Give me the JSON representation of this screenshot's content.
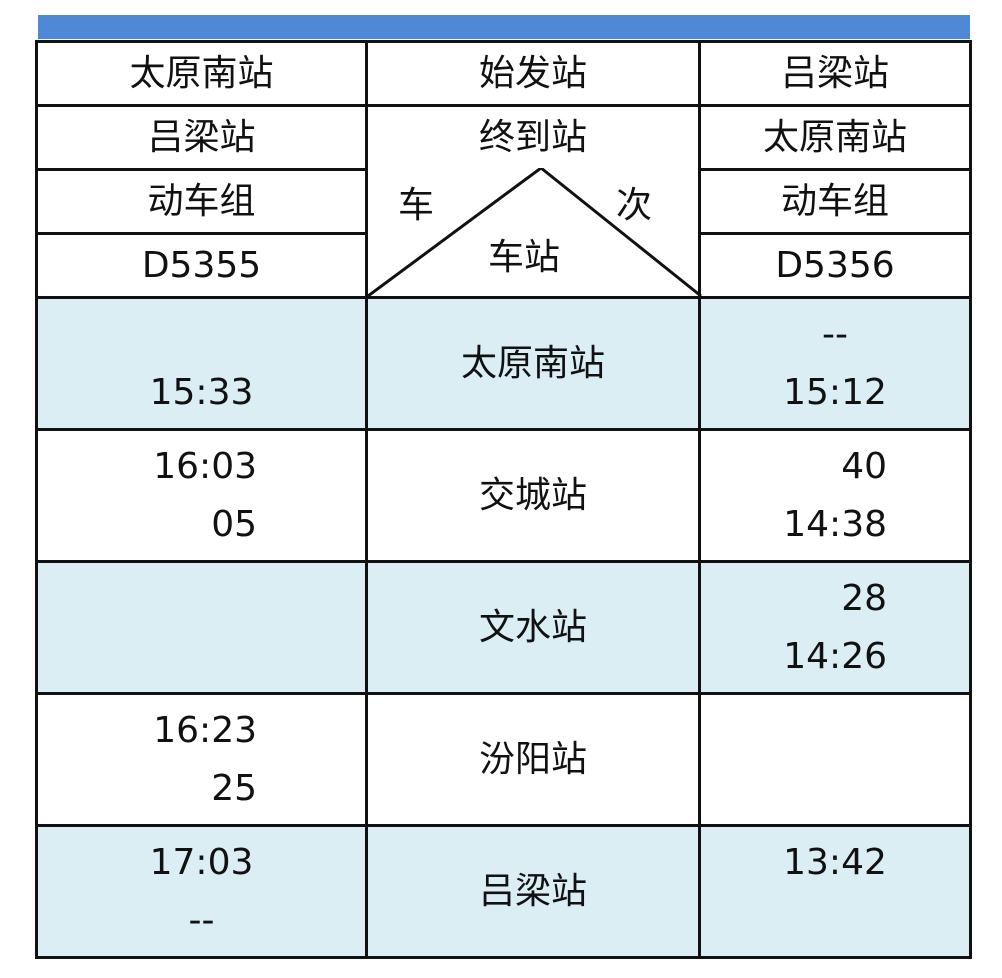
{
  "header": {
    "origin_label": "始发站",
    "destination_label": "终到站",
    "train_type_label": "动车组",
    "corner": {
      "train": "车",
      "number": "次",
      "station": "车站"
    },
    "left": {
      "origin": "太原南站",
      "destination": "吕梁站",
      "type": "动车组",
      "train_no": "D5355"
    },
    "right": {
      "origin": "吕梁站",
      "destination": "太原南站",
      "type": "动车组",
      "train_no": "D5356"
    }
  },
  "rows": [
    {
      "station": "太原南站",
      "left": [
        "",
        "15:33"
      ],
      "right": [
        "--",
        "15:12"
      ]
    },
    {
      "station": "交城站",
      "left": [
        "16:03",
        "05"
      ],
      "right": [
        "40",
        "14:38"
      ]
    },
    {
      "station": "文水站",
      "left": [
        "",
        ""
      ],
      "right": [
        "28",
        "14:26"
      ]
    },
    {
      "station": "汾阳站",
      "left": [
        "16:23",
        "25"
      ],
      "right": [
        "",
        ""
      ]
    },
    {
      "station": "吕梁站",
      "left": [
        "17:03",
        "--"
      ],
      "right": [
        "13:42",
        ""
      ]
    }
  ],
  "colors": {
    "header_bar": "#4f88d4",
    "shaded_row": "#dbeef3"
  }
}
